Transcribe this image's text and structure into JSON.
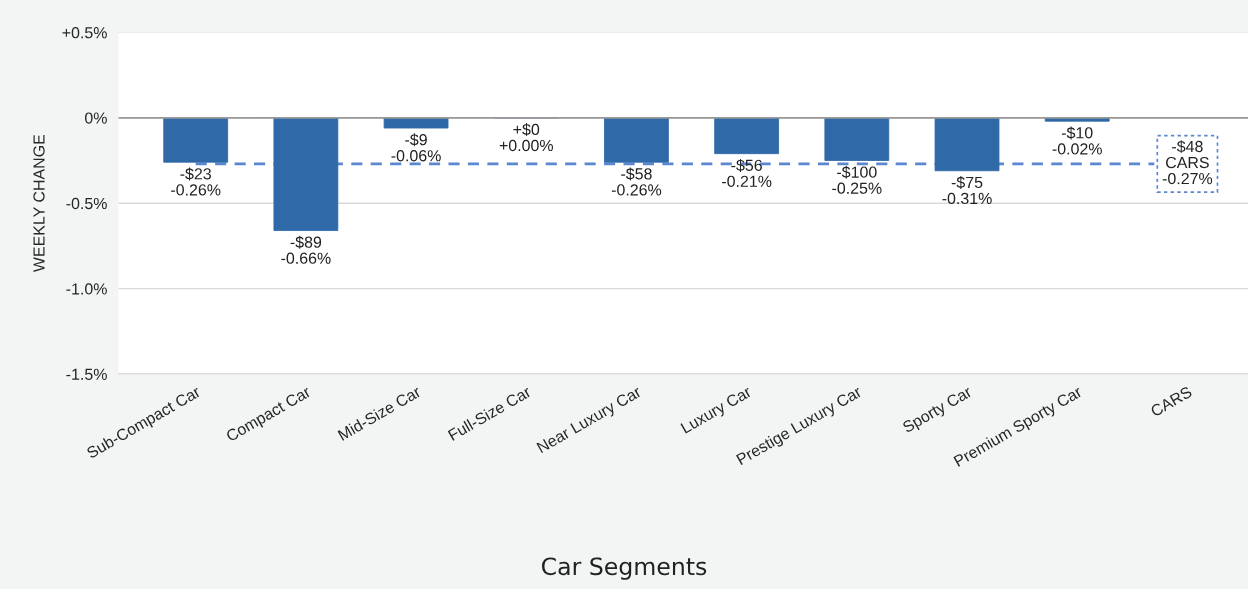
{
  "chart_data": {
    "type": "bar",
    "xlabel": "Car Segments",
    "ylabel": "WEEKLY CHANGE",
    "categories": [
      "Sub-Compact Car",
      "Compact Car",
      "Mid-Size Car",
      "Full-Size Car",
      "Near Luxury Car",
      "Luxury Car",
      "Prestige Luxury Car",
      "Sporty Car",
      "Premium Sporty Car",
      "CARS"
    ],
    "series": [
      {
        "color": "#2f69a8",
        "values": [
          -0.26,
          -0.66,
          -0.06,
          0.0,
          -0.26,
          -0.21,
          -0.25,
          -0.31,
          -0.02,
          null
        ],
        "value_labels": [
          "-$23\n-0.26%",
          "-$89\n-0.66%",
          "-$9\n-0.06%",
          "+$0\n+0.00%",
          "-$58\n-0.26%",
          "-$56\n-0.21%",
          "-$100\n-0.25%",
          "-$75\n-0.31%",
          "-$10\n-0.02%",
          null
        ]
      }
    ],
    "ylim": [
      -1.5,
      0.5
    ],
    "yticks": [
      {
        "value": 0.5,
        "label": "+0.5%"
      },
      {
        "value": 0,
        "label": "0%"
      },
      {
        "value": -0.5,
        "label": "-0.5%"
      },
      {
        "value": -1.0,
        "label": "-1.0%"
      },
      {
        "value": -1.5,
        "label": "-1.5%"
      }
    ],
    "ref_lines": [
      {
        "axis": "y",
        "value": -0.27,
        "label": "-$48\nCARS\n-0.27%",
        "color": "#5b86d0",
        "line_style": "dashed"
      }
    ],
    "grid": "y",
    "legend": false
  }
}
